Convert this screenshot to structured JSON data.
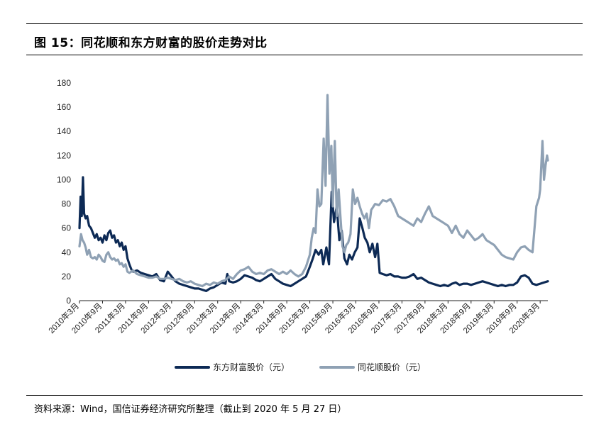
{
  "title": "图 15：同花顺和东方财富的股价走势对比",
  "source": "资料来源：Wind，国信证券经济研究所整理（截止到 2020 年 5 月 27 日）",
  "colors": {
    "east_money": "#0d2a55",
    "ths": "#8fa1b4"
  },
  "chart_data": {
    "type": "line",
    "title": "",
    "xlabel": "",
    "ylabel": "",
    "ylim": [
      0,
      180
    ],
    "yticks": [
      0,
      20,
      40,
      60,
      80,
      100,
      120,
      140,
      160,
      180
    ],
    "xticks": [
      "2010年3月",
      "2010年9月",
      "2011年3月",
      "2011年9月",
      "2012年3月",
      "2012年9月",
      "2013年3月",
      "2013年9月",
      "2014年3月",
      "2014年9月",
      "2015年3月",
      "2015年9月",
      "2016年3月",
      "2016年9月",
      "2017年3月",
      "2017年9月",
      "2018年3月",
      "2018年9月",
      "2019年3月",
      "2019年9月",
      "2020年3月"
    ],
    "x_unit": "months since 2010年3月",
    "xlim": [
      0,
      122
    ],
    "legend": "bottom-center",
    "grid": false,
    "series": [
      {
        "name": "东方财富股价（元）",
        "color": "#0d2a55",
        "points": [
          [
            0,
            60
          ],
          [
            0.3,
            86
          ],
          [
            0.6,
            70
          ],
          [
            0.9,
            102
          ],
          [
            1.2,
            72
          ],
          [
            1.6,
            68
          ],
          [
            2,
            70
          ],
          [
            2.5,
            62
          ],
          [
            3,
            60
          ],
          [
            3.5,
            56
          ],
          [
            4,
            52
          ],
          [
            4.5,
            55
          ],
          [
            5,
            50
          ],
          [
            5.5,
            52
          ],
          [
            6,
            48
          ],
          [
            6.5,
            54
          ],
          [
            7,
            50
          ],
          [
            7.5,
            56
          ],
          [
            8,
            58
          ],
          [
            8.5,
            52
          ],
          [
            9,
            54
          ],
          [
            9.5,
            48
          ],
          [
            10,
            50
          ],
          [
            10.5,
            45
          ],
          [
            11,
            48
          ],
          [
            11.5,
            42
          ],
          [
            12,
            45
          ],
          [
            12.5,
            35
          ],
          [
            13,
            30
          ],
          [
            13.5,
            26
          ],
          [
            14,
            24
          ],
          [
            15,
            25
          ],
          [
            16,
            23
          ],
          [
            17,
            22
          ],
          [
            18,
            21
          ],
          [
            19,
            20
          ],
          [
            20,
            22
          ],
          [
            21,
            17
          ],
          [
            22,
            16
          ],
          [
            23,
            24
          ],
          [
            24,
            20
          ],
          [
            25,
            16
          ],
          [
            26,
            14
          ],
          [
            27,
            13
          ],
          [
            28,
            12
          ],
          [
            29,
            11
          ],
          [
            30,
            10
          ],
          [
            31,
            10
          ],
          [
            32,
            9
          ],
          [
            33,
            8
          ],
          [
            34,
            10
          ],
          [
            35,
            11
          ],
          [
            36,
            13
          ],
          [
            37,
            15
          ],
          [
            38,
            14
          ],
          [
            38.5,
            22
          ],
          [
            39,
            16
          ],
          [
            40,
            15
          ],
          [
            41,
            16
          ],
          [
            42,
            18
          ],
          [
            43,
            21
          ],
          [
            44,
            20
          ],
          [
            45,
            19
          ],
          [
            46,
            17
          ],
          [
            47,
            16
          ],
          [
            48,
            18
          ],
          [
            49,
            20
          ],
          [
            50,
            22
          ],
          [
            51,
            18
          ],
          [
            52,
            16
          ],
          [
            53,
            14
          ],
          [
            54,
            13
          ],
          [
            55,
            12
          ],
          [
            56,
            14
          ],
          [
            57,
            16
          ],
          [
            58,
            18
          ],
          [
            59,
            20
          ],
          [
            60,
            28
          ],
          [
            60.8,
            35
          ],
          [
            61.5,
            42
          ],
          [
            62.3,
            38
          ],
          [
            63,
            42
          ],
          [
            63.5,
            30
          ],
          [
            64.3,
            44
          ],
          [
            65,
            30
          ],
          [
            65.7,
            90
          ],
          [
            66.3,
            65
          ],
          [
            67,
            78
          ],
          [
            67.7,
            50
          ],
          [
            68.3,
            58
          ],
          [
            69,
            35
          ],
          [
            69.7,
            30
          ],
          [
            70.3,
            38
          ],
          [
            71,
            34
          ],
          [
            71.7,
            40
          ],
          [
            72.4,
            44
          ],
          [
            73,
            68
          ],
          [
            73.7,
            60
          ],
          [
            74.3,
            52
          ],
          [
            75,
            48
          ],
          [
            75.6,
            40
          ],
          [
            76.3,
            47
          ],
          [
            77,
            36
          ],
          [
            77.6,
            47
          ],
          [
            78.2,
            23
          ],
          [
            79,
            22
          ],
          [
            80,
            21
          ],
          [
            81,
            22
          ],
          [
            82,
            20
          ],
          [
            83,
            20
          ],
          [
            84,
            19
          ],
          [
            85,
            19
          ],
          [
            86,
            20
          ],
          [
            87,
            22
          ],
          [
            88,
            18
          ],
          [
            89,
            19
          ],
          [
            90,
            17
          ],
          [
            91,
            15
          ],
          [
            92,
            14
          ],
          [
            93,
            13
          ],
          [
            94,
            12
          ],
          [
            95,
            13
          ],
          [
            96,
            12
          ],
          [
            97,
            14
          ],
          [
            98,
            15
          ],
          [
            99,
            13
          ],
          [
            100,
            14
          ],
          [
            101,
            14
          ],
          [
            102,
            13
          ],
          [
            103,
            14
          ],
          [
            104,
            15
          ],
          [
            105,
            16
          ],
          [
            106,
            15
          ],
          [
            107,
            14
          ],
          [
            108,
            13
          ],
          [
            109,
            12
          ],
          [
            110,
            13
          ],
          [
            111,
            12
          ],
          [
            112,
            13
          ],
          [
            113,
            13
          ],
          [
            114,
            15
          ],
          [
            115,
            20
          ],
          [
            116,
            21
          ],
          [
            117,
            19
          ],
          [
            118,
            14
          ],
          [
            119,
            13
          ],
          [
            120,
            14
          ],
          [
            121,
            15
          ],
          [
            122,
            16
          ]
        ]
      },
      {
        "name": "同花顺股价（元）",
        "color": "#8fa1b4",
        "points": [
          [
            0,
            45
          ],
          [
            0.4,
            55
          ],
          [
            0.8,
            50
          ],
          [
            1.2,
            48
          ],
          [
            1.6,
            44
          ],
          [
            2,
            38
          ],
          [
            2.5,
            42
          ],
          [
            3,
            36
          ],
          [
            3.5,
            35
          ],
          [
            4,
            36
          ],
          [
            4.5,
            34
          ],
          [
            5,
            38
          ],
          [
            5.5,
            36
          ],
          [
            6,
            33
          ],
          [
            6.5,
            32
          ],
          [
            7,
            38
          ],
          [
            7.5,
            40
          ],
          [
            8,
            36
          ],
          [
            8.5,
            34
          ],
          [
            9,
            35
          ],
          [
            9.5,
            33
          ],
          [
            10,
            34
          ],
          [
            10.5,
            30
          ],
          [
            11,
            31
          ],
          [
            11.5,
            28
          ],
          [
            12,
            30
          ],
          [
            12.5,
            24
          ],
          [
            13,
            23
          ],
          [
            14,
            25
          ],
          [
            15,
            22
          ],
          [
            16,
            21
          ],
          [
            17,
            20
          ],
          [
            18,
            19
          ],
          [
            19,
            19
          ],
          [
            20,
            20
          ],
          [
            21,
            18
          ],
          [
            22,
            18
          ],
          [
            23,
            19
          ],
          [
            24,
            18
          ],
          [
            25,
            17
          ],
          [
            26,
            18
          ],
          [
            27,
            16
          ],
          [
            28,
            15
          ],
          [
            29,
            16
          ],
          [
            30,
            14
          ],
          [
            31,
            13
          ],
          [
            32,
            12
          ],
          [
            33,
            14
          ],
          [
            34,
            13
          ],
          [
            35,
            15
          ],
          [
            36,
            14
          ],
          [
            37,
            16
          ],
          [
            38,
            17
          ],
          [
            39,
            20
          ],
          [
            40,
            18
          ],
          [
            41,
            22
          ],
          [
            42,
            25
          ],
          [
            43,
            26
          ],
          [
            44,
            28
          ],
          [
            45,
            24
          ],
          [
            46,
            22
          ],
          [
            47,
            23
          ],
          [
            48,
            22
          ],
          [
            49,
            25
          ],
          [
            50,
            26
          ],
          [
            51,
            24
          ],
          [
            52,
            22
          ],
          [
            53,
            24
          ],
          [
            54,
            22
          ],
          [
            55,
            25
          ],
          [
            56,
            22
          ],
          [
            57,
            20
          ],
          [
            58,
            22
          ],
          [
            59,
            28
          ],
          [
            60,
            38
          ],
          [
            60.5,
            52
          ],
          [
            61,
            60
          ],
          [
            61.5,
            56
          ],
          [
            62,
            92
          ],
          [
            62.5,
            78
          ],
          [
            63,
            80
          ],
          [
            63.6,
            134
          ],
          [
            64.1,
            95
          ],
          [
            64.6,
            170
          ],
          [
            65.1,
            105
          ],
          [
            65.6,
            128
          ],
          [
            66,
            78
          ],
          [
            66.5,
            132
          ],
          [
            67,
            70
          ],
          [
            67.5,
            92
          ],
          [
            68,
            68
          ],
          [
            68.5,
            45
          ],
          [
            69,
            40
          ],
          [
            69.5,
            46
          ],
          [
            70,
            48
          ],
          [
            70.6,
            55
          ],
          [
            71.2,
            92
          ],
          [
            71.8,
            80
          ],
          [
            72.4,
            85
          ],
          [
            73,
            78
          ],
          [
            73.6,
            72
          ],
          [
            74.2,
            68
          ],
          [
            74.8,
            72
          ],
          [
            75.4,
            60
          ],
          [
            76,
            75
          ],
          [
            77,
            80
          ],
          [
            78,
            79
          ],
          [
            79,
            83
          ],
          [
            80,
            82
          ],
          [
            81,
            84
          ],
          [
            82,
            78
          ],
          [
            83,
            70
          ],
          [
            84,
            68
          ],
          [
            85,
            66
          ],
          [
            86,
            64
          ],
          [
            87,
            62
          ],
          [
            88,
            68
          ],
          [
            89,
            65
          ],
          [
            90,
            72
          ],
          [
            91,
            78
          ],
          [
            92,
            70
          ],
          [
            93,
            68
          ],
          [
            94,
            66
          ],
          [
            95,
            64
          ],
          [
            96,
            62
          ],
          [
            97,
            56
          ],
          [
            98,
            62
          ],
          [
            99,
            55
          ],
          [
            100,
            52
          ],
          [
            101,
            58
          ],
          [
            102,
            54
          ],
          [
            103,
            50
          ],
          [
            104,
            52
          ],
          [
            105,
            55
          ],
          [
            106,
            50
          ],
          [
            107,
            48
          ],
          [
            108,
            46
          ],
          [
            109,
            42
          ],
          [
            110,
            38
          ],
          [
            111,
            36
          ],
          [
            112,
            35
          ],
          [
            113,
            34
          ],
          [
            114,
            40
          ],
          [
            115,
            44
          ],
          [
            116,
            45
          ],
          [
            117,
            42
          ],
          [
            118,
            40
          ],
          [
            119,
            78
          ],
          [
            119.7,
            85
          ],
          [
            120,
            92
          ],
          [
            120.6,
            132
          ],
          [
            121,
            100
          ],
          [
            121.4,
            112
          ],
          [
            121.8,
            120
          ],
          [
            122,
            116
          ]
        ]
      }
    ]
  }
}
